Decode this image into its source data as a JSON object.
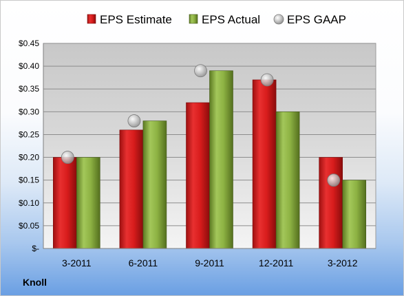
{
  "company": "Knoll",
  "chart_data": {
    "type": "bar",
    "categories": [
      "3-2011",
      "6-2011",
      "9-2011",
      "12-2011",
      "3-2012"
    ],
    "series": [
      {
        "name": "EPS Estimate",
        "values": [
          0.2,
          0.26,
          0.32,
          0.37,
          0.2
        ],
        "color": "#e02424",
        "mark": "bar"
      },
      {
        "name": "EPS Actual",
        "values": [
          0.2,
          0.28,
          0.39,
          0.3,
          0.15
        ],
        "color": "#8db243",
        "mark": "bar"
      },
      {
        "name": "EPS GAAP",
        "values": [
          0.2,
          0.28,
          0.39,
          0.37,
          0.15
        ],
        "color": "#bfbfbf",
        "mark": "bubble"
      }
    ],
    "y_ticks": [
      "$-",
      "$0.05",
      "$0.10",
      "$0.15",
      "$0.20",
      "$0.25",
      "$0.30",
      "$0.35",
      "$0.40",
      "$0.45"
    ],
    "ylim": [
      0,
      0.45
    ],
    "y_tick_step": 0.05,
    "grid": true,
    "legend_position": "top",
    "title": "",
    "xlabel": "",
    "ylabel": "",
    "plot_background": "#d9d9d9"
  }
}
